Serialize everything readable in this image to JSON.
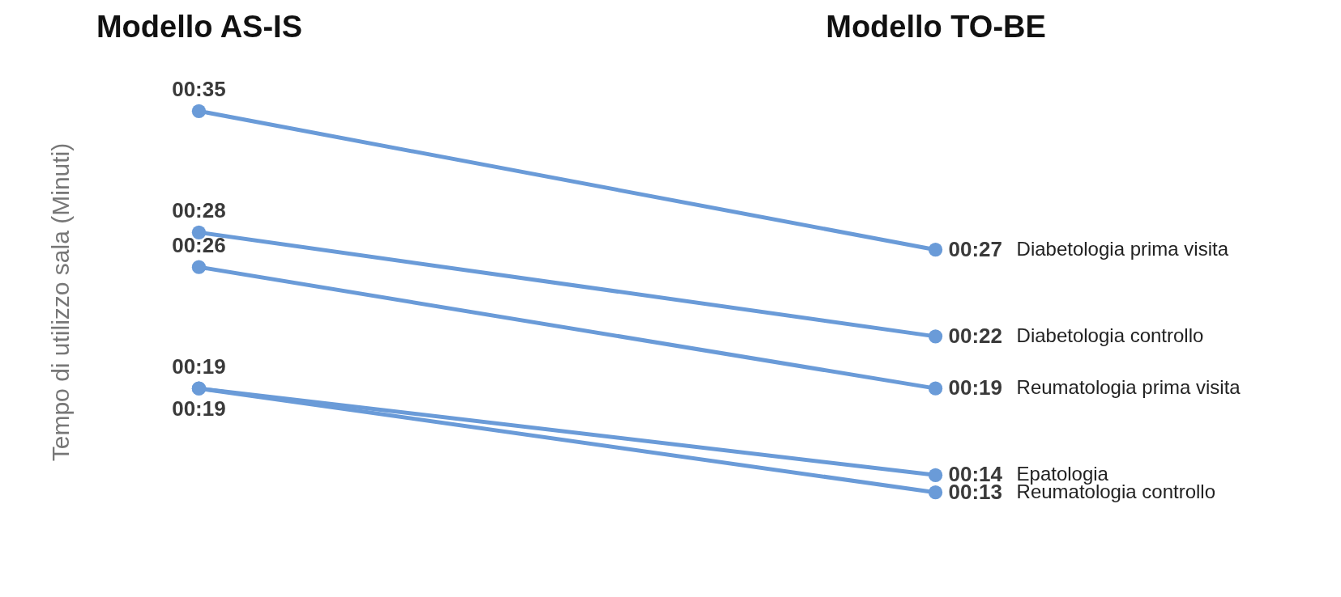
{
  "chart_data": {
    "type": "line",
    "ylabel": "Tempo di utilizzo sala (Minuti)",
    "categories": [
      "Modello AS-IS",
      "Modello TO-BE"
    ],
    "marker": "circle",
    "tick_labels": "x",
    "series": [
      {
        "name": "Epatologia",
        "color": "#6a9bd8",
        "values": [
          19,
          14
        ],
        "value_labels": [
          "00:19",
          "00:14"
        ]
      },
      {
        "name": "Reumatologia controllo",
        "color": "#6a9bd8",
        "values": [
          19,
          13
        ],
        "value_labels": [
          "00:19",
          "00:13"
        ]
      },
      {
        "name": "Reumatologia prima visita",
        "color": "#6a9bd8",
        "values": [
          26,
          19
        ],
        "value_labels": [
          "00:26",
          "00:19"
        ]
      },
      {
        "name": "Diabetologia controllo",
        "color": "#6a9bd8",
        "values": [
          28,
          22
        ],
        "value_labels": [
          "00:28",
          "00:22"
        ]
      },
      {
        "name": "Diabetologia prima visita",
        "color": "#6a9bd8",
        "values": [
          35,
          27
        ],
        "value_labels": [
          "00:35",
          "00:27"
        ]
      }
    ]
  }
}
